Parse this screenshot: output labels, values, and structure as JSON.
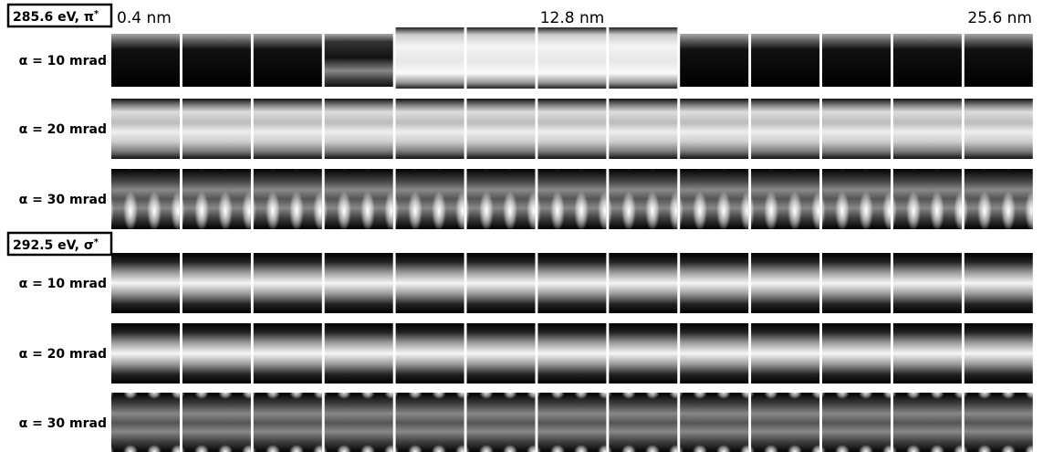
{
  "groups": [
    {
      "label": "285.6 eV, π",
      "sup": "*",
      "rows": [
        "α = 10 mrad",
        "α = 20 mrad",
        "α = 30 mrad"
      ]
    },
    {
      "label": "292.5 eV, σ",
      "sup": "*",
      "rows": [
        "α = 10 mrad",
        "α = 20 mrad",
        "α = 30 mrad"
      ]
    }
  ],
  "column_labels": [
    "0.4 nm",
    "12.8 nm",
    "25.6 nm"
  ]
}
